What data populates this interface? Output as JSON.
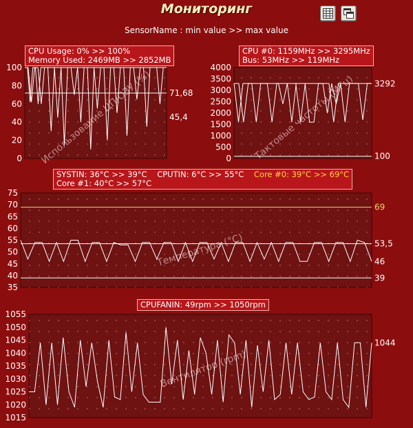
{
  "window": {
    "title": "Мониторинг",
    "subtitle": "SensorName : min value >> max value",
    "buttons": [
      {
        "name": "table-view-button",
        "icon": "table-icon"
      },
      {
        "name": "restore-window-button",
        "icon": "restore-window-icon"
      }
    ]
  },
  "colors": {
    "background": "#8c0d0d",
    "plot_background": "#6e1212",
    "line": "#ffffff",
    "limit_line": "#e8d470",
    "accent_text": "#ffd24a"
  },
  "panels": {
    "usage": {
      "legend": [
        "CPU Usage: 0% >> 100%",
        "Memory Used: 2469MB >> 2852MB"
      ],
      "watermark": "Использование ЦП/ОЗУ (%)",
      "markers": [
        "71,68",
        "45,4"
      ]
    },
    "clock": {
      "legend": [
        "CPU #0: 1159MHz >> 3295MHz",
        "Bus: 53MHz >> 119MHz"
      ],
      "watermark": "Тактовые частоты (МГц)",
      "markers": [
        "3292",
        "100"
      ]
    },
    "temp": {
      "legend": {
        "line1": [
          "SYSTIN: 36°C >> 39°C",
          "CPUTIN: 6°C >> 55°C",
          "Core #0: 39°C >> 69°C"
        ],
        "line2": [
          "Core #1: 40°C >> 57°C"
        ]
      },
      "watermark": "Температура (°C)",
      "markers": [
        "69",
        "53,5",
        "46",
        "39"
      ]
    },
    "fan": {
      "legend": "CPUFANIN: 49rpm >> 1050rpm",
      "watermark": "Вентилятор (rpm)",
      "markers": [
        "1044"
      ]
    }
  },
  "chart_data": [
    {
      "type": "line",
      "name": "usage",
      "ylim": [
        0,
        100
      ],
      "yticks": [
        "100",
        "80",
        "60",
        "40",
        "20",
        "0"
      ],
      "series": [
        {
          "values": [
            100,
            100,
            62,
            100,
            100,
            60,
            100,
            100,
            100,
            100,
            100,
            100,
            100,
            100,
            100,
            100,
            100,
            100,
            100,
            100,
            100,
            100,
            100,
            100,
            100,
            100,
            100,
            100,
            100,
            100,
            100,
            100,
            100,
            100,
            100,
            100,
            100,
            100,
            100,
            100,
            100,
            100,
            100,
            100,
            100,
            100,
            100,
            100,
            100,
            100,
            100,
            100,
            100,
            100
          ]
        },
        {
          "values": [
            72,
            72,
            72,
            72,
            72,
            72,
            72,
            72,
            72,
            72,
            72,
            72,
            72,
            72,
            72,
            72,
            72,
            72,
            72,
            72,
            72,
            72,
            72,
            72,
            72,
            72,
            72,
            72,
            72,
            72,
            72,
            72,
            72,
            72,
            72,
            72,
            72,
            72,
            72,
            72,
            72,
            72,
            72,
            72,
            72,
            72,
            72,
            72,
            72,
            72,
            72,
            72,
            72,
            72
          ]
        }
      ]
    },
    {
      "type": "line",
      "name": "clock",
      "ylim": [
        0,
        4000
      ],
      "yticks": [
        "4000",
        "3500",
        "3000",
        "2500",
        "2000",
        "1500",
        "1000",
        "500",
        "0"
      ],
      "series": [
        {
          "values": [
            3300,
            3300,
            1600,
            3300,
            3300,
            3300,
            3300,
            3300,
            1600,
            3300,
            3300,
            3300,
            3300,
            3300,
            1600,
            3300,
            3300,
            3300,
            3300,
            3300,
            3300,
            1600,
            3300,
            3300,
            3300,
            3300,
            3300,
            3300,
            3300,
            3300
          ]
        },
        {
          "values": [
            100,
            100,
            100,
            100,
            100,
            100,
            100,
            100,
            100,
            100,
            100,
            100,
            100,
            100,
            100,
            100,
            100,
            100,
            100,
            100,
            100,
            100,
            100,
            100,
            100,
            100,
            100,
            100,
            100,
            100
          ]
        }
      ]
    },
    {
      "type": "line",
      "name": "temperature",
      "ylim": [
        35,
        75
      ],
      "yticks": [
        "75",
        "70",
        "65",
        "60",
        "55",
        "50",
        "45",
        "40",
        "35"
      ],
      "series": [
        {
          "values": [
            69,
            69,
            69,
            69,
            69,
            69,
            69,
            69,
            69,
            69,
            69,
            69,
            69,
            69,
            69,
            69,
            69,
            69,
            69,
            69,
            69,
            69,
            69,
            69,
            69,
            69,
            69,
            69,
            69,
            69,
            69,
            69,
            69,
            69,
            69,
            69,
            69,
            69,
            69,
            69,
            69,
            69,
            69,
            69,
            69,
            69,
            69,
            69,
            69,
            69
          ]
        },
        {
          "values": [
            53.5,
            53.5,
            53.5,
            53.5,
            53.5,
            53.5,
            53.5,
            53.5,
            53.5,
            53.5,
            53.5,
            53.5,
            53.5,
            53.5,
            53.5,
            53.5,
            53.5,
            53.5,
            53.5,
            53.5,
            53.5,
            53.5,
            53.5,
            53.5,
            53.5,
            53.5,
            53.5,
            53.5,
            53.5,
            53.5,
            53.5,
            53.5,
            53.5,
            53.5,
            53.5,
            53.5,
            53.5,
            53.5,
            53.5,
            53.5,
            53.5,
            53.5,
            53.5,
            53.5,
            53.5,
            53.5,
            53.5,
            53.5,
            53.5,
            53.5
          ]
        },
        {
          "values": [
            55,
            47,
            54,
            54,
            46,
            54,
            46,
            55,
            55,
            46,
            54,
            54,
            46,
            54,
            53,
            53,
            46,
            54,
            54,
            47,
            54,
            54,
            46,
            54,
            46,
            54,
            54,
            47,
            54,
            46,
            54,
            54,
            46,
            54,
            47,
            54,
            46,
            54,
            54,
            46,
            46,
            54,
            54,
            46,
            54,
            54,
            46,
            55,
            54,
            46
          ]
        },
        {
          "values": [
            39,
            39,
            39,
            39,
            39,
            39,
            39,
            39,
            39,
            39,
            39,
            39,
            39,
            39,
            39,
            39,
            39,
            39,
            39,
            39,
            39,
            39,
            39,
            39,
            39,
            39,
            39,
            39,
            39,
            39,
            39,
            39,
            39,
            39,
            39,
            39,
            39,
            39,
            39,
            39,
            39,
            39,
            39,
            39,
            39,
            39,
            39,
            39,
            39,
            39
          ]
        }
      ]
    },
    {
      "type": "line",
      "name": "fan",
      "ylim": [
        1015,
        1055
      ],
      "yticks": [
        "1055",
        "1050",
        "1045",
        "1040",
        "1035",
        "1030",
        "1025",
        "1020",
        "1015"
      ],
      "series": [
        {
          "values": [
            1025,
            1025,
            1044,
            1020,
            1044,
            1020,
            1046,
            1025,
            1019,
            1045,
            1027,
            1044,
            1029,
            1019,
            1045,
            1023,
            1022,
            1048,
            1025,
            1044,
            1024,
            1021,
            1021,
            1021,
            1050,
            1028,
            1045,
            1022,
            1041,
            1024,
            1046,
            1040,
            1024,
            1045,
            1021,
            1047,
            1044,
            1024,
            1045,
            1019,
            1043,
            1025,
            1045,
            1022,
            1024,
            1044,
            1024,
            1044,
            1025,
            1022,
            1023,
            1044,
            1025,
            1022,
            1044,
            1022,
            1019,
            1044,
            1044,
            1019,
            1044
          ]
        }
      ]
    }
  ]
}
